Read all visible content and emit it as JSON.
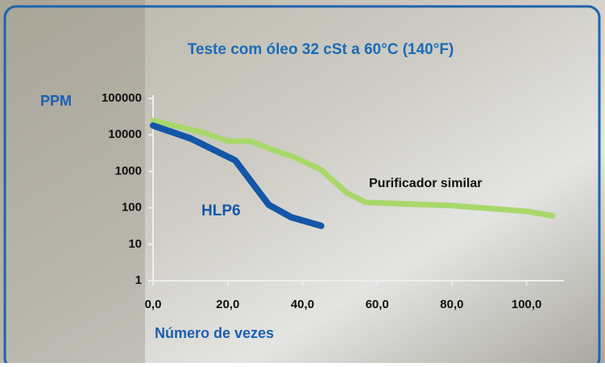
{
  "chart_data": {
    "type": "line",
    "title": "Teste com óleo 32 cSt a 60°C (140°F)",
    "y_label": "PPM",
    "x_label": "Número de vezes",
    "log_y": true,
    "ylim": [
      1,
      100000
    ],
    "yticks": [
      1,
      10,
      100,
      1000,
      10000,
      100000
    ],
    "xlim": [
      0,
      110
    ],
    "xticks": [
      {
        "value": 0,
        "label": "0,0"
      },
      {
        "value": 20,
        "label": "20,0"
      },
      {
        "value": 40,
        "label": "40,0"
      },
      {
        "value": 60,
        "label": "60,0"
      },
      {
        "value": 80,
        "label": "80,0"
      },
      {
        "value": 100,
        "label": "100,0"
      }
    ],
    "series": [
      {
        "name": "HLP6",
        "color": "#1456a8",
        "x": [
          0,
          10,
          22,
          31,
          37,
          45
        ],
        "values": [
          18000,
          8000,
          2000,
          120,
          55,
          32
        ]
      },
      {
        "name": "Purificador similar",
        "color": "#a8d86c",
        "x": [
          0,
          10,
          13,
          20,
          26,
          33,
          38,
          45,
          52,
          57,
          80,
          100,
          107
        ],
        "values": [
          25000,
          14000,
          12000,
          6700,
          6700,
          3600,
          2400,
          1100,
          250,
          140,
          115,
          80,
          60
        ]
      }
    ]
  }
}
